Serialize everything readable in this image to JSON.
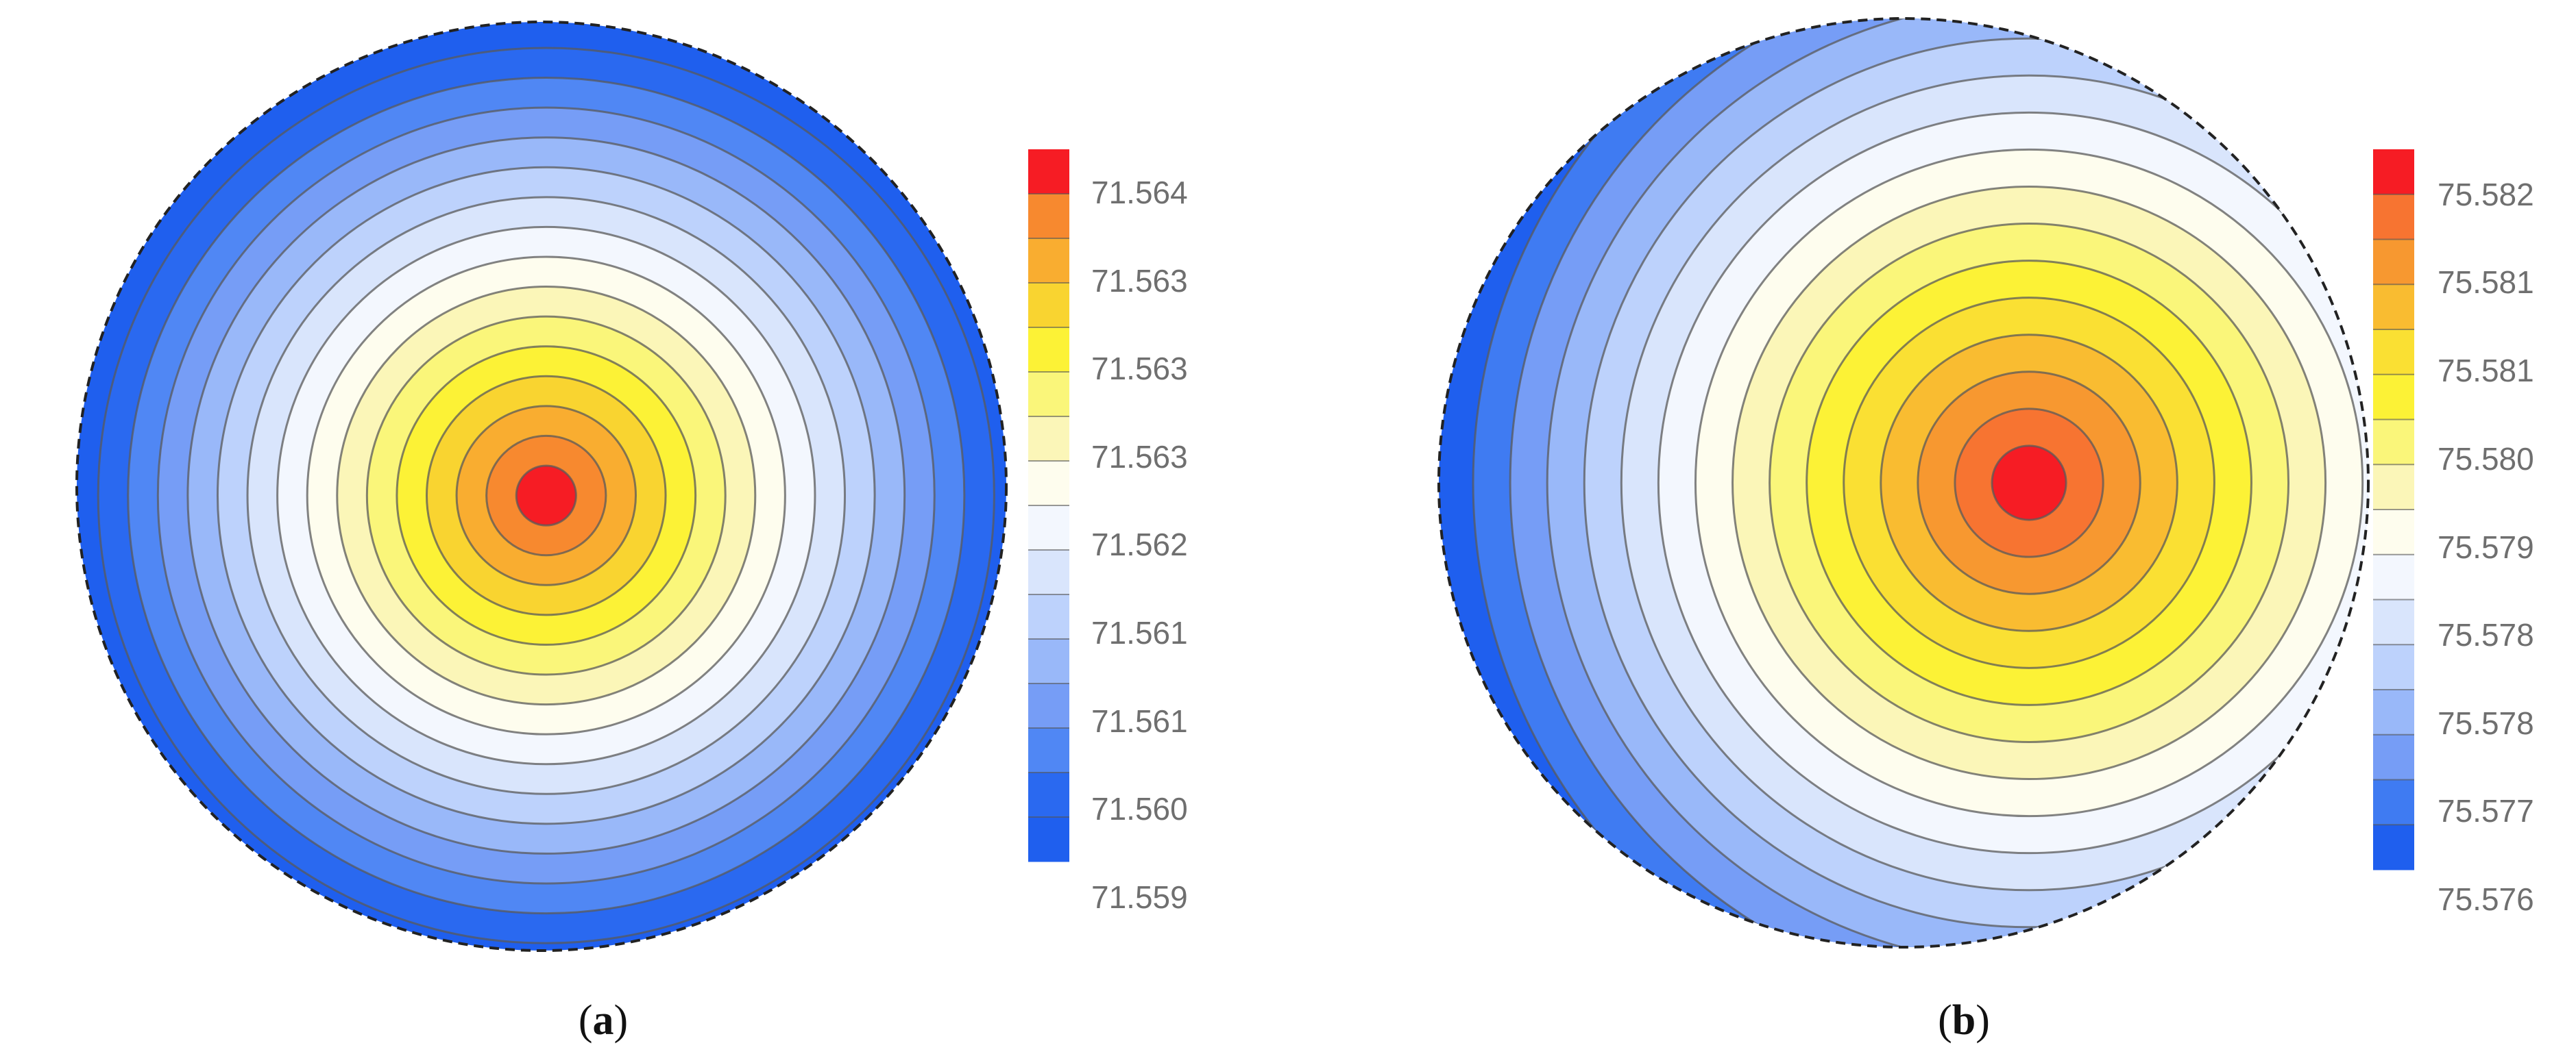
{
  "chart_data": [
    {
      "type": "heatmap",
      "panel": "a",
      "caption_open": "(",
      "caption_letter": "a",
      "caption_close": ")",
      "colorbar_ticks": [
        "71.564",
        "71.563",
        "71.563",
        "71.563",
        "71.562",
        "71.561",
        "71.561",
        "71.560",
        "71.559"
      ],
      "value_range": [
        71.5587,
        71.5643
      ],
      "contour_levels": 16,
      "peak_offset": [
        0.01,
        0.02
      ],
      "colorbar_colors": [
        "#f61c24",
        "#f7892f",
        "#f9ad30",
        "#f9d430",
        "#fcf236",
        "#faf67a",
        "#fbf6b8",
        "#fefdee",
        "#f3f7fe",
        "#d9e5fc",
        "#bdd2fc",
        "#99b8f9",
        "#769df6",
        "#5087f4",
        "#2a69f0",
        "#1f5fee"
      ]
    },
    {
      "type": "heatmap",
      "panel": "b",
      "caption_open": "(",
      "caption_letter": "b",
      "caption_close": ")",
      "colorbar_ticks": [
        "75.582",
        "75.581",
        "75.581",
        "75.580",
        "75.579",
        "75.578",
        "75.578",
        "75.577",
        "75.576"
      ],
      "value_range": [
        75.5755,
        75.5826
      ],
      "contour_levels": 16,
      "peak_offset": [
        0.27,
        0.0
      ],
      "colorbar_colors": [
        "#f61c24",
        "#f77431",
        "#f79830",
        "#f9bc31",
        "#fae033",
        "#fcf236",
        "#faf67a",
        "#fbf6b8",
        "#fefdee",
        "#f3f7fe",
        "#d9e5fc",
        "#bdd2fc",
        "#99b8f9",
        "#769df6",
        "#3f7bf2",
        "#1f5fee"
      ]
    }
  ]
}
